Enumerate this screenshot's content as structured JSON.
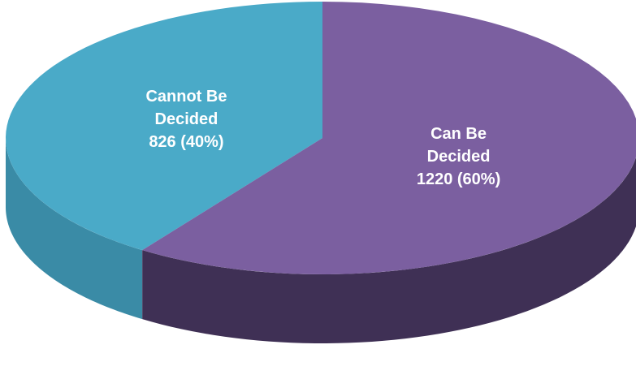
{
  "chart_data": {
    "type": "pie",
    "categories": [
      "Cannot Be Decided",
      "Can  Be Decided"
    ],
    "values": [
      826,
      1220
    ],
    "value_labels": [
      "826 (40%)",
      "1220  (60%)"
    ],
    "colors": [
      "#4aaac8",
      "#7b5fa0"
    ],
    "side_colors": [
      "#3a8ba6",
      "#3f3055"
    ]
  }
}
